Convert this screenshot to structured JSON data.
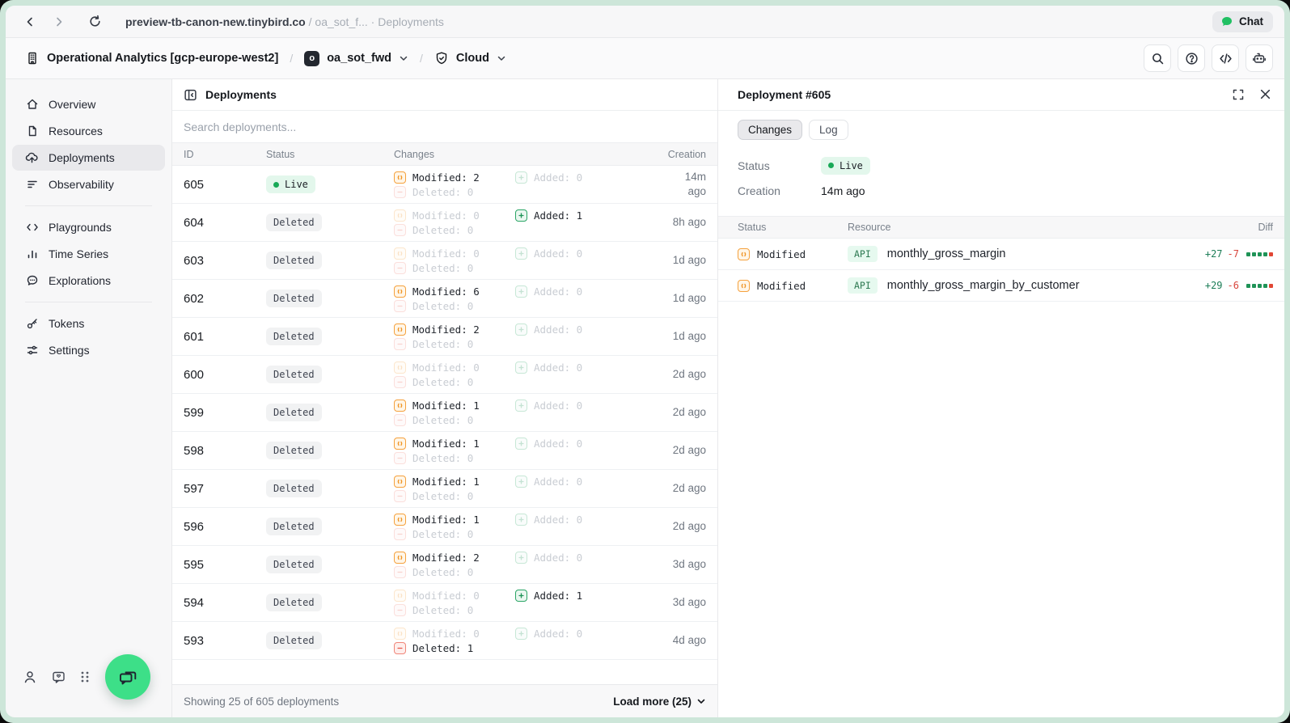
{
  "browser": {
    "url_host": "preview-tb-canon-new.tinybird.co",
    "url_rest": " / oa_sot_f... · Deployments",
    "chat_label": "Chat"
  },
  "header": {
    "workspace": "Operational Analytics [gcp-europe-west2]",
    "separator": "/",
    "project_badge": "o",
    "project": "oa_sot_fwd",
    "environment": "Cloud"
  },
  "sidebar": {
    "groups": [
      {
        "items": [
          {
            "label": "Overview",
            "icon": "home-icon",
            "active": false
          },
          {
            "label": "Resources",
            "icon": "file-icon",
            "active": false
          },
          {
            "label": "Deployments",
            "icon": "cloud-upload-icon",
            "active": true
          },
          {
            "label": "Observability",
            "icon": "funnel-icon",
            "active": false
          }
        ]
      },
      {
        "items": [
          {
            "label": "Playgrounds",
            "icon": "code-icon",
            "active": false
          },
          {
            "label": "Time Series",
            "icon": "bar-chart-icon",
            "active": false
          },
          {
            "label": "Explorations",
            "icon": "chat-bubble-icon",
            "active": false
          }
        ]
      },
      {
        "items": [
          {
            "label": "Tokens",
            "icon": "key-icon",
            "active": false
          },
          {
            "label": "Settings",
            "icon": "sliders-icon",
            "active": false
          }
        ]
      }
    ]
  },
  "deployments": {
    "title": "Deployments",
    "search_placeholder": "Search deployments...",
    "columns": {
      "id": "ID",
      "status": "Status",
      "changes": "Changes",
      "creation": "Creation"
    },
    "change_labels": {
      "modified": "Modified",
      "deleted": "Deleted",
      "added": "Added"
    },
    "rows": [
      {
        "id": "605",
        "status": "Live",
        "modified": 2,
        "deleted": 0,
        "added": 0,
        "creation": "14m ago"
      },
      {
        "id": "604",
        "status": "Deleted",
        "modified": 0,
        "deleted": 0,
        "added": 1,
        "creation": "8h ago"
      },
      {
        "id": "603",
        "status": "Deleted",
        "modified": 0,
        "deleted": 0,
        "added": 0,
        "creation": "1d ago"
      },
      {
        "id": "602",
        "status": "Deleted",
        "modified": 6,
        "deleted": 0,
        "added": 0,
        "creation": "1d ago"
      },
      {
        "id": "601",
        "status": "Deleted",
        "modified": 2,
        "deleted": 0,
        "added": 0,
        "creation": "1d ago"
      },
      {
        "id": "600",
        "status": "Deleted",
        "modified": 0,
        "deleted": 0,
        "added": 0,
        "creation": "2d ago"
      },
      {
        "id": "599",
        "status": "Deleted",
        "modified": 1,
        "deleted": 0,
        "added": 0,
        "creation": "2d ago"
      },
      {
        "id": "598",
        "status": "Deleted",
        "modified": 1,
        "deleted": 0,
        "added": 0,
        "creation": "2d ago"
      },
      {
        "id": "597",
        "status": "Deleted",
        "modified": 1,
        "deleted": 0,
        "added": 0,
        "creation": "2d ago"
      },
      {
        "id": "596",
        "status": "Deleted",
        "modified": 1,
        "deleted": 0,
        "added": 0,
        "creation": "2d ago"
      },
      {
        "id": "595",
        "status": "Deleted",
        "modified": 2,
        "deleted": 0,
        "added": 0,
        "creation": "3d ago"
      },
      {
        "id": "594",
        "status": "Deleted",
        "modified": 0,
        "deleted": 0,
        "added": 1,
        "creation": "3d ago"
      },
      {
        "id": "593",
        "status": "Deleted",
        "modified": 0,
        "deleted": 1,
        "added": 0,
        "creation": "4d ago"
      }
    ],
    "footer": {
      "summary": "Showing 25 of 605 deployments",
      "load_more": "Load more (25)"
    }
  },
  "detail": {
    "title": "Deployment #605",
    "tabs": [
      {
        "label": "Changes",
        "active": true
      },
      {
        "label": "Log",
        "active": false
      }
    ],
    "status_label": "Status",
    "status_value": "Live",
    "creation_label": "Creation",
    "creation_value": "14m ago",
    "columns": {
      "status": "Status",
      "resource": "Resource",
      "diff": "Diff"
    },
    "rows": [
      {
        "status": "Modified",
        "resource_type": "API",
        "resource": "monthly_gross_margin",
        "additions": "+27",
        "deletions": "-7",
        "dots_green": 4,
        "dots_red": 1
      },
      {
        "status": "Modified",
        "resource_type": "API",
        "resource": "monthly_gross_margin_by_customer",
        "additions": "+29",
        "deletions": "-6",
        "dots_green": 4,
        "dots_red": 1
      }
    ]
  },
  "colors": {
    "accent_green": "#18a957",
    "fab_green": "#3ddf88",
    "mint_frame": "#cde6d9",
    "modified_orange": "#f5a13d",
    "deleted_red": "#e5574a",
    "added_green": "#1f9357"
  }
}
